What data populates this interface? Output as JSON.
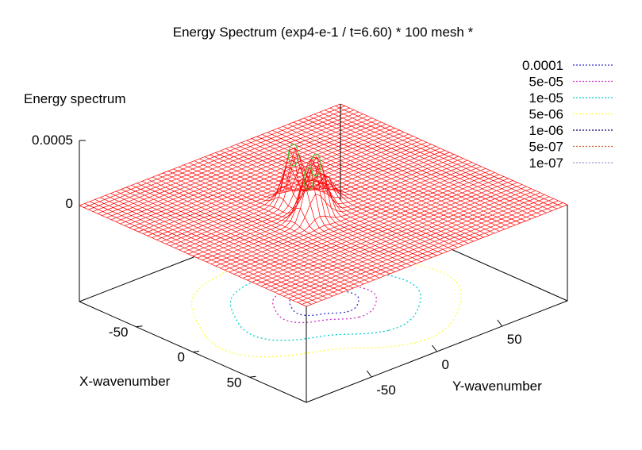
{
  "chart_data": {
    "type": "surface3d",
    "title": "Energy Spectrum (exp4-e-1 / t=6.60) * 100 mesh *",
    "zlabel": "Energy spectrum",
    "xlabel": "X-wavenumber",
    "ylabel": "Y-wavenumber",
    "x_ticks": [
      -50,
      0,
      50
    ],
    "y_ticks": [
      -50,
      0,
      50
    ],
    "z_ticks": [
      "0.0005",
      "0"
    ],
    "x_range": [
      -100,
      100
    ],
    "y_range": [
      -100,
      100
    ],
    "z_range": [
      0,
      0.0005
    ],
    "mesh": 100,
    "surface_color": "#ff0000",
    "peaks": [
      {
        "x": 5,
        "y": -10,
        "z": 0.00045
      },
      {
        "x": 10,
        "y": -20,
        "z": 0.0004
      },
      {
        "x": -15,
        "y": -10,
        "z": 0.00045
      },
      {
        "x": -5,
        "y": 5,
        "z": 0.00025
      }
    ],
    "contour_levels": [
      {
        "label": "0.0001",
        "color": "#3333cc",
        "radius": 20
      },
      {
        "label": "5e-05",
        "color": "#cc33cc",
        "radius": 30
      },
      {
        "label": "1e-05",
        "color": "#00cccc",
        "radius": 55
      },
      {
        "label": "5e-06",
        "color": "#ffff33",
        "radius": 78
      },
      {
        "label": "1e-06",
        "color": "#000066",
        "radius": 0
      },
      {
        "label": "5e-07",
        "color": "#cc6633",
        "radius": 0
      },
      {
        "label": "1e-07",
        "color": "#9999cc",
        "radius": 0
      }
    ],
    "legend": "top-right"
  }
}
